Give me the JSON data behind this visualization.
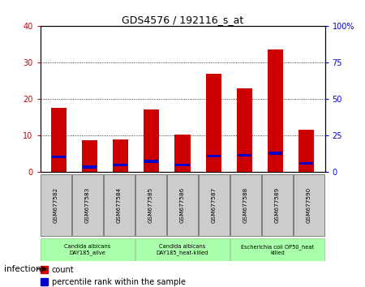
{
  "title": "GDS4576 / 192116_s_at",
  "samples": [
    "GSM677582",
    "GSM677583",
    "GSM677584",
    "GSM677585",
    "GSM677586",
    "GSM677587",
    "GSM677588",
    "GSM677589",
    "GSM677590"
  ],
  "counts": [
    17.5,
    8.8,
    9.0,
    17.2,
    10.3,
    27.0,
    23.0,
    33.5,
    11.5
  ],
  "percentile_values": [
    10.5,
    3.5,
    5.0,
    7.5,
    5.0,
    11.0,
    11.5,
    13.0,
    6.0
  ],
  "count_color": "#cc0000",
  "percentile_color": "#0000cc",
  "ylim_left": [
    0,
    40
  ],
  "ylim_right": [
    0,
    100
  ],
  "yticks_left": [
    0,
    10,
    20,
    30,
    40
  ],
  "yticks_right": [
    0,
    25,
    50,
    75,
    100
  ],
  "ylabel_left_labels": [
    "0",
    "10",
    "20",
    "30",
    "40"
  ],
  "ylabel_right_labels": [
    "0",
    "25",
    "50",
    "75",
    "100%"
  ],
  "groups": [
    {
      "label": "Candida albicans\nDAY185_alive",
      "start": 0,
      "end": 3
    },
    {
      "label": "Candida albicans\nDAY185_heat-killed",
      "start": 3,
      "end": 6
    },
    {
      "label": "Escherichia coli OP50_heat\nkilled",
      "start": 6,
      "end": 9
    }
  ],
  "bg_color": "#ffffff",
  "bar_width": 0.5,
  "legend_count_label": "count",
  "legend_percentile_label": "percentile rank within the sample",
  "infection_label": "infection"
}
